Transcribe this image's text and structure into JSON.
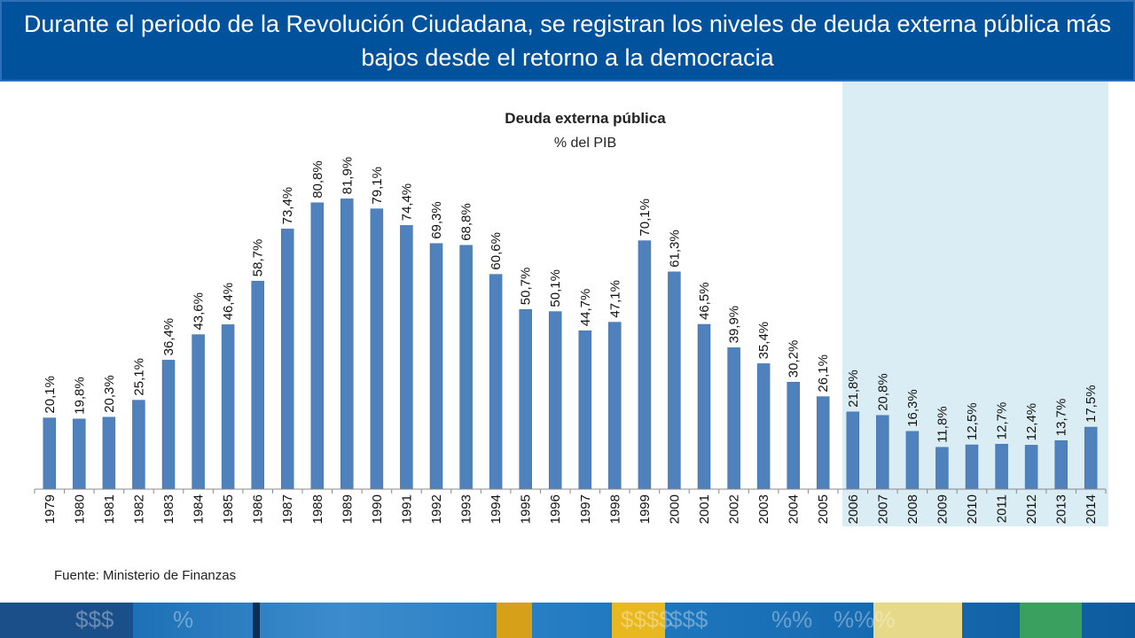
{
  "header": {
    "title": "Durante el periodo de la Revolución Ciudadana, se registran los niveles de deuda externa pública más bajos desde el retorno a la democracia"
  },
  "source": "Fuente: Ministerio de Finanzas",
  "colors": {
    "banner": "#00529c",
    "bar": "#4f81bd",
    "highlight": "#daedf4"
  },
  "footer": {
    "decor_glyphs": [
      "$$$",
      "%",
      "$$$$",
      "%%",
      "$$$",
      "%%%"
    ]
  },
  "chart_data": {
    "type": "bar",
    "title": "Deuda externa pública",
    "subtitle": "% del PIB",
    "xlabel": "",
    "ylabel": "",
    "ylim": [
      0,
      90
    ],
    "grid": false,
    "highlight_range": [
      "2006",
      "2014"
    ],
    "categories": [
      "1979",
      "1980",
      "1981",
      "1982",
      "1983",
      "1984",
      "1985",
      "1986",
      "1987",
      "1988",
      "1989",
      "1990",
      "1991",
      "1992",
      "1993",
      "1994",
      "1995",
      "1996",
      "1997",
      "1998",
      "1999",
      "2000",
      "2001",
      "2002",
      "2003",
      "2004",
      "2005",
      "2006",
      "2007",
      "2008",
      "2009",
      "2010",
      "2011",
      "2012",
      "2013",
      "2014"
    ],
    "values": [
      20.1,
      19.8,
      20.3,
      25.1,
      36.4,
      43.6,
      46.4,
      58.7,
      73.4,
      80.8,
      81.9,
      79.1,
      74.4,
      69.3,
      68.8,
      60.6,
      50.7,
      50.1,
      44.7,
      47.1,
      70.1,
      61.3,
      46.5,
      39.9,
      35.4,
      30.2,
      26.1,
      21.8,
      20.8,
      16.3,
      11.8,
      12.5,
      12.7,
      12.4,
      13.7,
      17.5
    ],
    "labels": [
      "20,1%",
      "19,8%",
      "20,3%",
      "25,1%",
      "36,4%",
      "43,6%",
      "46,4%",
      "58,7%",
      "73,4%",
      "80,8%",
      "81,9%",
      "79,1%",
      "74,4%",
      "69,3%",
      "68,8%",
      "60,6%",
      "50,7%",
      "50,1%",
      "44,7%",
      "47,1%",
      "70,1%",
      "61,3%",
      "46,5%",
      "39,9%",
      "35,4%",
      "30,2%",
      "26,1%",
      "21,8%",
      "20,8%",
      "16,3%",
      "11,8%",
      "12,5%",
      "12,7%",
      "12,4%",
      "13,7%",
      "17,5%"
    ]
  }
}
